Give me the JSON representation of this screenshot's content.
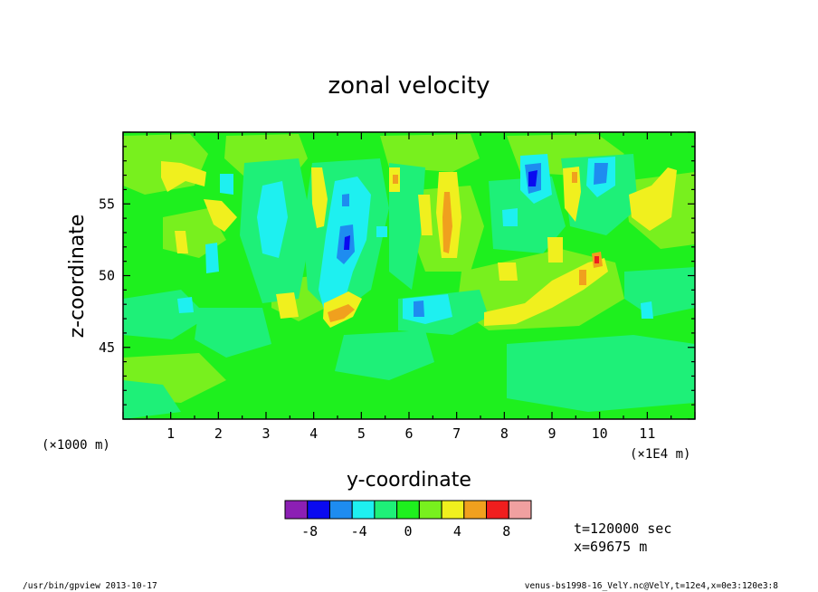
{
  "chart_data": {
    "type": "heatmap",
    "title": "zonal velocity",
    "xlabel": "y-coordinate",
    "ylabel": "z-coordinate",
    "x_scale_note": "(×1E4 m)",
    "y_scale_note": "(×1000 m)",
    "xlim": [
      0,
      12
    ],
    "ylim": [
      40,
      60
    ],
    "x_ticks": [
      "1",
      "2",
      "3",
      "4",
      "5",
      "6",
      "7",
      "8",
      "9",
      "10",
      "11"
    ],
    "y_ticks": [
      "45",
      "50",
      "55"
    ],
    "colorbar": {
      "levels": [
        -10,
        -8,
        -6,
        -4,
        -2,
        0,
        2,
        4,
        6,
        8,
        10
      ],
      "colors": [
        "#8c1fb4",
        "#0a0af0",
        "#1e8cf0",
        "#1ef0f0",
        "#1ef078",
        "#1ef01e",
        "#78f01e",
        "#f0f01e",
        "#f0a01e",
        "#f01e1e",
        "#f0a0a0"
      ],
      "tick_labels": [
        "-8",
        "-4",
        "0",
        "4",
        "8"
      ],
      "tick_values": [
        -8,
        -4,
        0,
        4,
        8
      ]
    },
    "features": [
      {
        "y": 4.6,
        "z": 52.5,
        "value": -6
      },
      {
        "y": 6.2,
        "z": 47.5,
        "value": -6
      },
      {
        "y": 8.5,
        "z": 56.8,
        "value": -8
      },
      {
        "y": 9.9,
        "z": 57.0,
        "value": -6
      },
      {
        "y": 4.5,
        "z": 47.3,
        "value": 6
      },
      {
        "y": 6.8,
        "z": 54.0,
        "value": 6
      },
      {
        "y": 10.0,
        "z": 51.0,
        "value": 8
      },
      {
        "y": 9.6,
        "z": 50.0,
        "value": 6
      },
      {
        "y": 9.5,
        "z": 57.0,
        "value": 6
      }
    ]
  },
  "annotations": {
    "time": "t=120000 sec",
    "xpos": "x=69675 m"
  },
  "footer": {
    "left": "/usr/bin/gpview  2013-10-17",
    "right": "venus-bs1998-16_VelY.nc@VelY,t=12e4,x=0e3:120e3:8"
  }
}
